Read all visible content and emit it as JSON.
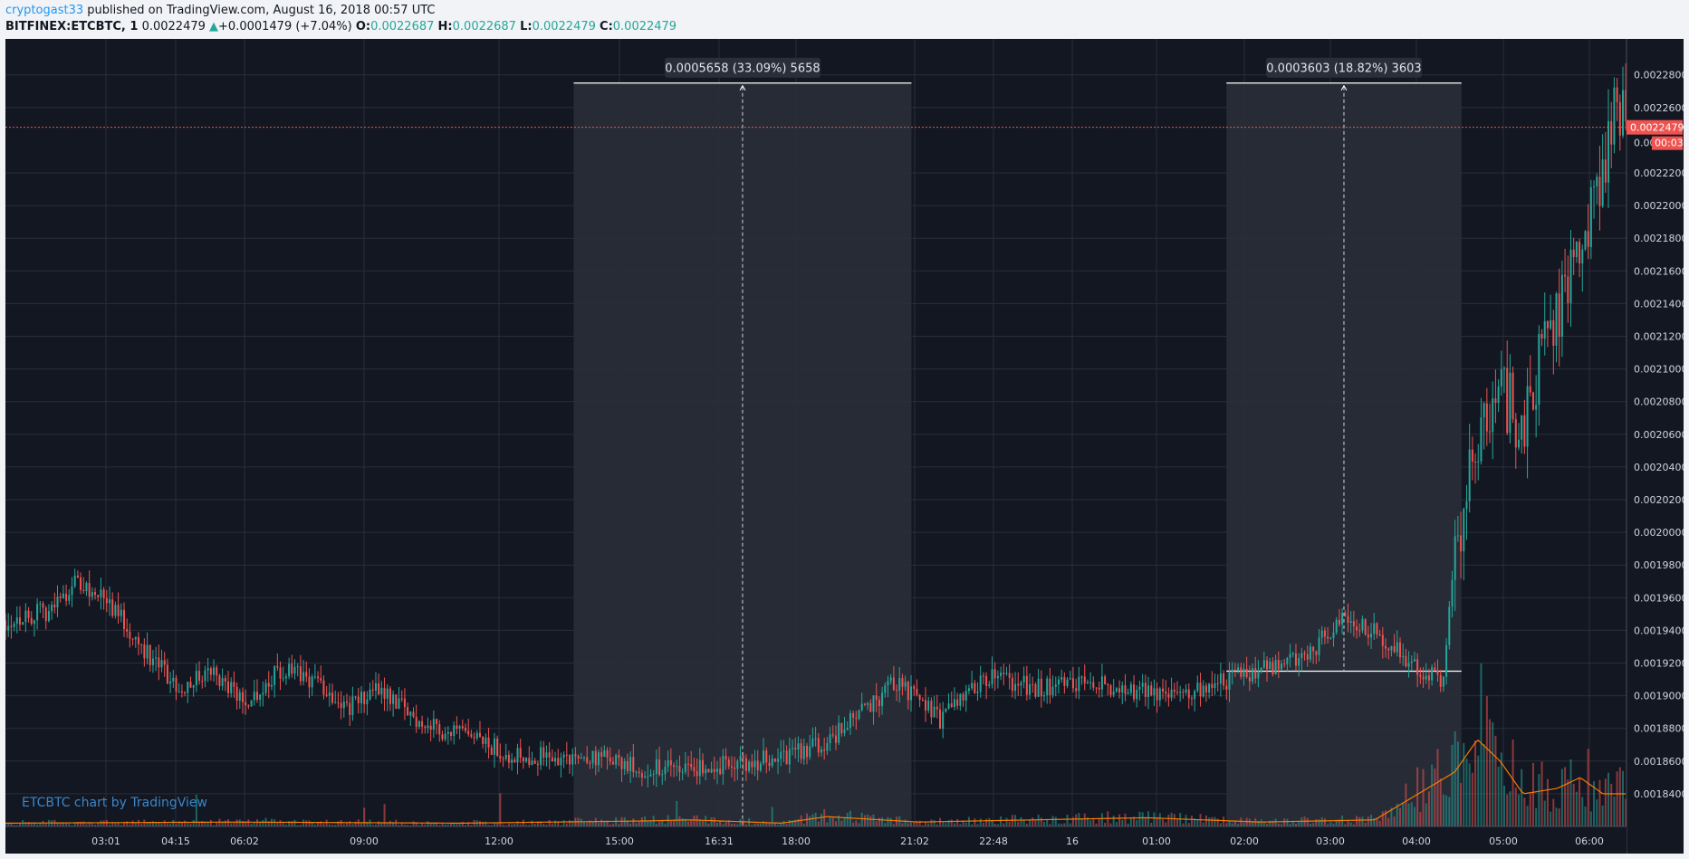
{
  "header": {
    "author": "cryptogast33",
    "published": " published on TradingView.com, August 16, 2018 00:57 UTC",
    "symbol": "BITFINEX:ETCBTC, 1",
    "last": "0.0022479",
    "change_arrow": "▲",
    "change": "+0.0001479 (+7.04%)",
    "o_label": "O:",
    "o_value": "0.0022687",
    "h_label": "H:",
    "h_value": "0.0022687",
    "l_label": "L:",
    "l_value": "0.0022479",
    "c_label": "C:",
    "c_value": "0.0022479"
  },
  "watermark": "ETCBTC chart by TradingView",
  "colors": {
    "background": "#131722",
    "up": "#26a69a",
    "down": "#ef5350",
    "volume_ma": "#f57c00",
    "price_line": "#ef5350",
    "measure_box": "#2a2e39"
  },
  "chart_data": {
    "type": "candlestick",
    "symbol": "BITFINEX:ETCBTC",
    "interval": "1",
    "y_axis": {
      "ticks": [
        0.00184,
        0.00186,
        0.00188,
        0.0019,
        0.00192,
        0.00194,
        0.00196,
        0.00198,
        0.002,
        0.00202,
        0.00204,
        0.00206,
        0.00208,
        0.0021,
        0.00212,
        0.00214,
        0.00216,
        0.00218,
        0.0022,
        0.00222,
        0.00226,
        0.00228
      ],
      "tick_labels": [
        "0.0018400",
        "0.0018600",
        "0.0018800",
        "0.0019000",
        "0.0019200",
        "0.0019400",
        "0.0019600",
        "0.0019800",
        "0.0020000",
        "0.0020200",
        "0.0020400",
        "0.0020600",
        "0.0020800",
        "0.0021000",
        "0.0021200",
        "0.0021400",
        "0.0021600",
        "0.0021800",
        "0.0022000",
        "0.0022200",
        "0.0022600",
        "0.0022800"
      ],
      "range": [
        0.00182,
        0.002302
      ]
    },
    "x_axis": {
      "tick_labels": [
        "03:01",
        "04:15",
        "06:02",
        "09:00",
        "12:00",
        "15:00",
        "16:31",
        "18:00",
        "21:02",
        "22:48",
        "16",
        "01:00",
        "02:00",
        "03:00",
        "04:00",
        "05:00",
        "06:00"
      ]
    },
    "last_price": {
      "value": 0.0022479,
      "label": "0.0022479",
      "countdown": "00:03",
      "partial_label": "0.00"
    },
    "price_path": [
      [
        0.0,
        0.001946
      ],
      [
        0.02,
        0.001952
      ],
      [
        0.03,
        0.00197
      ],
      [
        0.045,
        0.001958
      ],
      [
        0.06,
        0.00193
      ],
      [
        0.075,
        0.001905
      ],
      [
        0.09,
        0.001915
      ],
      [
        0.105,
        0.001896
      ],
      [
        0.12,
        0.001915
      ],
      [
        0.135,
        0.00191
      ],
      [
        0.15,
        0.001893
      ],
      [
        0.165,
        0.001905
      ],
      [
        0.18,
        0.001885
      ],
      [
        0.2,
        0.001875
      ],
      [
        0.22,
        0.001865
      ],
      [
        0.24,
        0.001862
      ],
      [
        0.26,
        0.001862
      ],
      [
        0.28,
        0.001855
      ],
      [
        0.3,
        0.001856
      ],
      [
        0.32,
        0.001858
      ],
      [
        0.34,
        0.001862
      ],
      [
        0.36,
        0.001872
      ],
      [
        0.38,
        0.001895
      ],
      [
        0.39,
        0.001908
      ],
      [
        0.41,
        0.001885
      ],
      [
        0.43,
        0.001912
      ],
      [
        0.45,
        0.001905
      ],
      [
        0.47,
        0.001908
      ],
      [
        0.49,
        0.001905
      ],
      [
        0.51,
        0.001898
      ],
      [
        0.53,
        0.001908
      ],
      [
        0.55,
        0.001915
      ],
      [
        0.57,
        0.001925
      ],
      [
        0.585,
        0.001945
      ],
      [
        0.6,
        0.00194
      ],
      [
        0.615,
        0.00192
      ],
      [
        0.63,
        0.00191
      ],
      [
        0.636,
        0.002
      ],
      [
        0.645,
        0.00205
      ],
      [
        0.655,
        0.00208
      ],
      [
        0.665,
        0.00207
      ],
      [
        0.675,
        0.00212
      ],
      [
        0.685,
        0.00215
      ],
      [
        0.69,
        0.00218
      ],
      [
        0.7,
        0.00222
      ],
      [
        0.706,
        0.002272
      ],
      [
        0.71,
        0.0022479
      ]
    ],
    "volume_path": [
      [
        0.0,
        0.3
      ],
      [
        0.1,
        0.4
      ],
      [
        0.2,
        0.3
      ],
      [
        0.28,
        0.5
      ],
      [
        0.3,
        0.6
      ],
      [
        0.34,
        0.3
      ],
      [
        0.36,
        0.9
      ],
      [
        0.4,
        0.4
      ],
      [
        0.5,
        0.8
      ],
      [
        0.55,
        0.4
      ],
      [
        0.6,
        0.6
      ],
      [
        0.635,
        5.0
      ],
      [
        0.645,
        8.0
      ],
      [
        0.655,
        6.0
      ],
      [
        0.665,
        3.0
      ],
      [
        0.68,
        3.5
      ],
      [
        0.69,
        4.5
      ],
      [
        0.7,
        3.0
      ],
      [
        0.71,
        3.0
      ]
    ],
    "measurements": [
      {
        "label": "0.0005658 (33.09%) 5658",
        "start_price": 0.00171,
        "end_price": 0.002275,
        "x_range": [
          0.249,
          0.397
        ]
      },
      {
        "label": "0.0003603 (18.82%) 3603",
        "start_price": 0.001915,
        "end_price": 0.002275,
        "x_range": [
          0.535,
          0.638
        ]
      }
    ]
  }
}
